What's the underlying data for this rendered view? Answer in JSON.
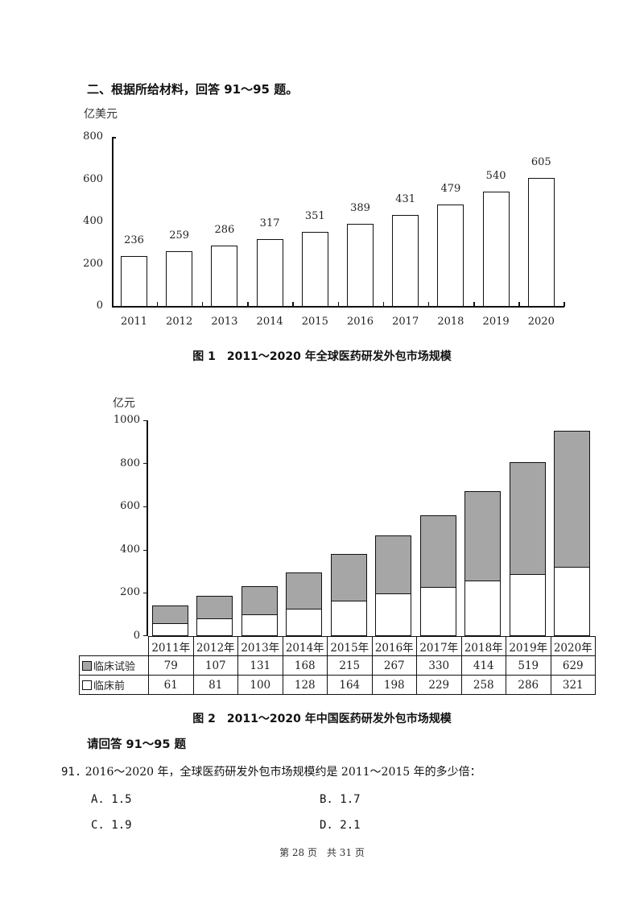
{
  "section_heading": "二、根据所给材料，回答 91～95 题。",
  "chart_data": [
    {
      "type": "bar",
      "title": "图 1　2011～2020 年全球医药研发外包市场规模",
      "ylabel": "亿美元",
      "xlabel": "",
      "ylim": [
        0,
        800
      ],
      "yticks": [
        0,
        200,
        400,
        600,
        800
      ],
      "categories": [
        "2011",
        "2012",
        "2013",
        "2014",
        "2015",
        "2016",
        "2017",
        "2018",
        "2019",
        "2020"
      ],
      "values": [
        236,
        259,
        286,
        317,
        351,
        389,
        431,
        479,
        540,
        605
      ],
      "data_labels": true,
      "grid": false
    },
    {
      "type": "bar",
      "stacked": true,
      "title": "图 2　2011～2020 年中国医药研发外包市场规模",
      "ylabel": "亿元",
      "xlabel": "",
      "ylim": [
        0,
        1000
      ],
      "yticks": [
        0,
        200,
        400,
        600,
        800,
        1000
      ],
      "categories": [
        "2011年",
        "2012年",
        "2013年",
        "2014年",
        "2015年",
        "2016年",
        "2017年",
        "2018年",
        "2019年",
        "2020年"
      ],
      "series": [
        {
          "name": "临床前",
          "color": "#ffffff",
          "values": [
            61,
            81,
            100,
            128,
            164,
            198,
            229,
            258,
            286,
            321
          ]
        },
        {
          "name": "临床试验",
          "color": "#a6a6a6",
          "values": [
            79,
            107,
            131,
            168,
            215,
            267,
            330,
            414,
            519,
            629
          ]
        }
      ],
      "legend_position": "data-table",
      "grid": false
    }
  ],
  "chart1": {
    "unit": "亿美元",
    "yticks": [
      "800",
      "600",
      "400",
      "200",
      "0"
    ],
    "years": [
      "2011",
      "2012",
      "2013",
      "2014",
      "2015",
      "2016",
      "2017",
      "2018",
      "2019",
      "2020"
    ],
    "labels": [
      "236",
      "259",
      "286",
      "317",
      "351",
      "389",
      "431",
      "479",
      "540",
      "605"
    ],
    "caption": "图 1　2011～2020 年全球医药研发外包市场规模"
  },
  "chart2": {
    "unit": "亿元",
    "yticks": [
      "1000",
      "800",
      "600",
      "400",
      "200",
      "0"
    ],
    "table": {
      "years": [
        "2011年",
        "2012年",
        "2013年",
        "2014年",
        "2015年",
        "2016年",
        "2017年",
        "2018年",
        "2019年",
        "2020年"
      ],
      "row_clinical_label": "临床试验",
      "row_clinical": [
        "79",
        "107",
        "131",
        "168",
        "215",
        "267",
        "330",
        "414",
        "519",
        "629"
      ],
      "row_preclinical_label": "临床前",
      "row_preclinical": [
        "61",
        "81",
        "100",
        "128",
        "164",
        "198",
        "229",
        "258",
        "286",
        "321"
      ]
    },
    "caption": "图 2　2011～2020 年中国医药研发外包市场规模"
  },
  "prompt": "请回答 91～95 题",
  "question": {
    "number": "91.",
    "text": "2016～2020 年，全球医药研发外包市场规模约是 2011～2015 年的多少倍：",
    "options": [
      {
        "key": "A.",
        "value": "1.5"
      },
      {
        "key": "B.",
        "value": "1.7"
      },
      {
        "key": "C.",
        "value": "1.9"
      },
      {
        "key": "D.",
        "value": "2.1"
      }
    ]
  },
  "footer": "第 28 页　共 31 页"
}
